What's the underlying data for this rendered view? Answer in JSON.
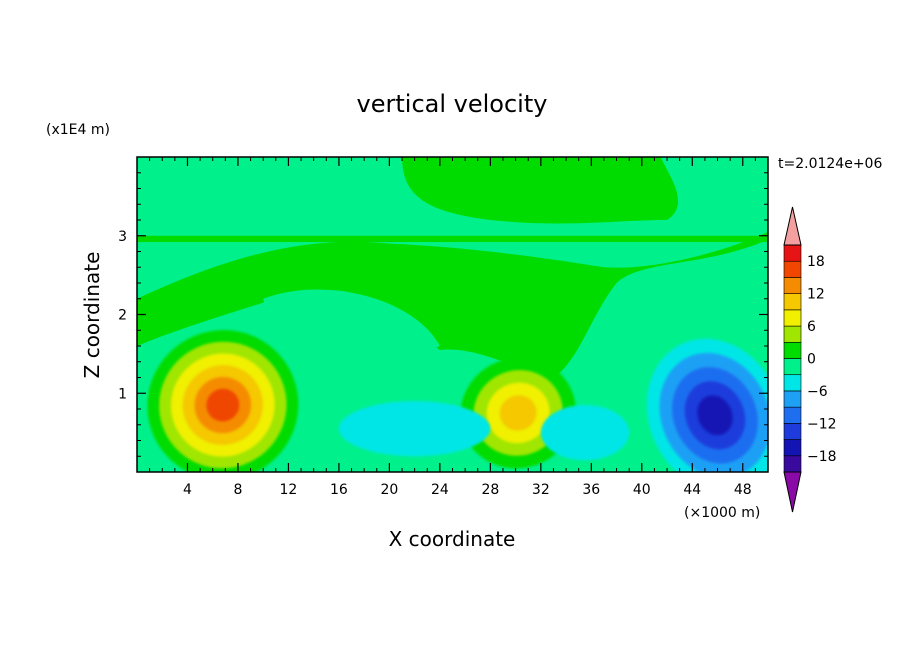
{
  "chart_data": {
    "type": "heatmap",
    "title": "vertical velocity",
    "xlabel": "X coordinate",
    "ylabel": "Z coordinate",
    "x_unit": "(×1000 m)",
    "y_unit": "(x1E4 m)",
    "time_label": "t=2.0124e+06",
    "xlim": [
      0,
      50
    ],
    "ylim": [
      0,
      4
    ],
    "x_ticks": [
      4,
      8,
      12,
      16,
      20,
      24,
      28,
      32,
      36,
      40,
      44,
      48
    ],
    "y_ticks": [
      1,
      2,
      3
    ],
    "colorbar": {
      "labels": [
        18,
        12,
        6,
        0,
        -6,
        -12,
        -18
      ],
      "levels": [
        -21,
        -18,
        -15,
        -12,
        -9,
        -6,
        -3,
        0,
        3,
        6,
        9,
        12,
        15,
        18,
        21
      ],
      "colors": [
        "#8a0aa8",
        "#3a0a9e",
        "#1414b4",
        "#1e3cdc",
        "#1e6ef0",
        "#1ea0f5",
        "#00e6e6",
        "#00f08c",
        "#00dc00",
        "#a0e600",
        "#f0f000",
        "#f5c800",
        "#f58c00",
        "#f04600",
        "#e61414",
        "#f5a0a0"
      ]
    },
    "features": [
      {
        "x": 7,
        "z": 0.8,
        "peak": 15,
        "kind": "updraft"
      },
      {
        "x": 30,
        "z": 0.75,
        "peak": 9,
        "kind": "updraft"
      },
      {
        "x": 46,
        "z": 0.7,
        "peak": -15,
        "kind": "downdraft"
      },
      {
        "x": 22,
        "z": 0.6,
        "peak": -5,
        "kind": "downdraft"
      },
      {
        "x": 35,
        "z": 0.5,
        "peak": -5,
        "kind": "downdraft"
      }
    ]
  }
}
